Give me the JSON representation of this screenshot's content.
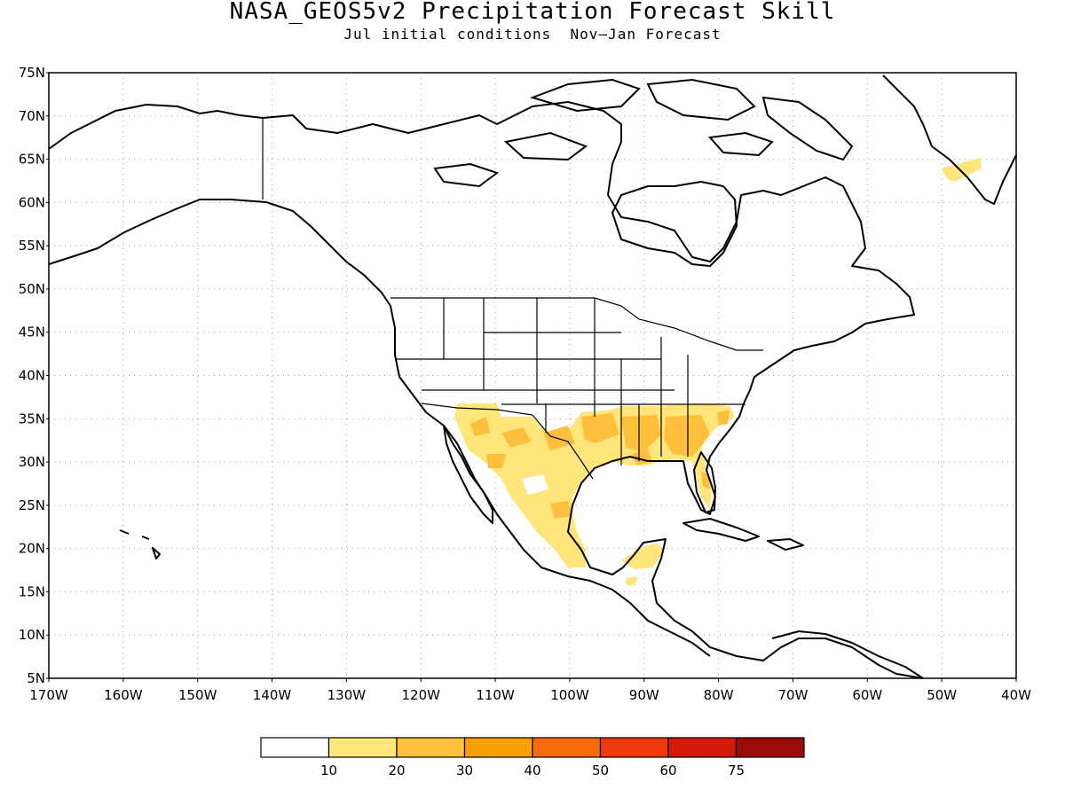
{
  "title": "NASA_GEOS5v2 Precipitation Forecast Skill",
  "subtitle": "Jul initial conditions  Nov—Jan Forecast",
  "map": {
    "projection": "lat-lon",
    "lon_range": [
      -170,
      -40
    ],
    "lat_range": [
      5,
      75
    ],
    "grid": "dotted",
    "lat_labels": [
      "75N",
      "70N",
      "65N",
      "60N",
      "55N",
      "50N",
      "45N",
      "40N",
      "35N",
      "30N",
      "25N",
      "20N",
      "15N",
      "10N",
      "5N"
    ],
    "lon_labels": [
      "170W",
      "160W",
      "150W",
      "140W",
      "130W",
      "120W",
      "110W",
      "100W",
      "90W",
      "80W",
      "70W",
      "60W",
      "50W",
      "40W"
    ]
  },
  "colorbar": {
    "colors": [
      "#ffffff",
      "#ffe57a",
      "#fdbf3c",
      "#f8a000",
      "#f86a0a",
      "#f03a0a",
      "#d41a0a",
      "#9a0a0a"
    ],
    "labels": [
      "10",
      "20",
      "30",
      "40",
      "50",
      "60",
      "75"
    ]
  },
  "colors": {
    "skill_10_20": "#ffe57a",
    "skill_20_30": "#fdbf3c",
    "coastline": "#000000",
    "grid": "#a0a0a0"
  }
}
